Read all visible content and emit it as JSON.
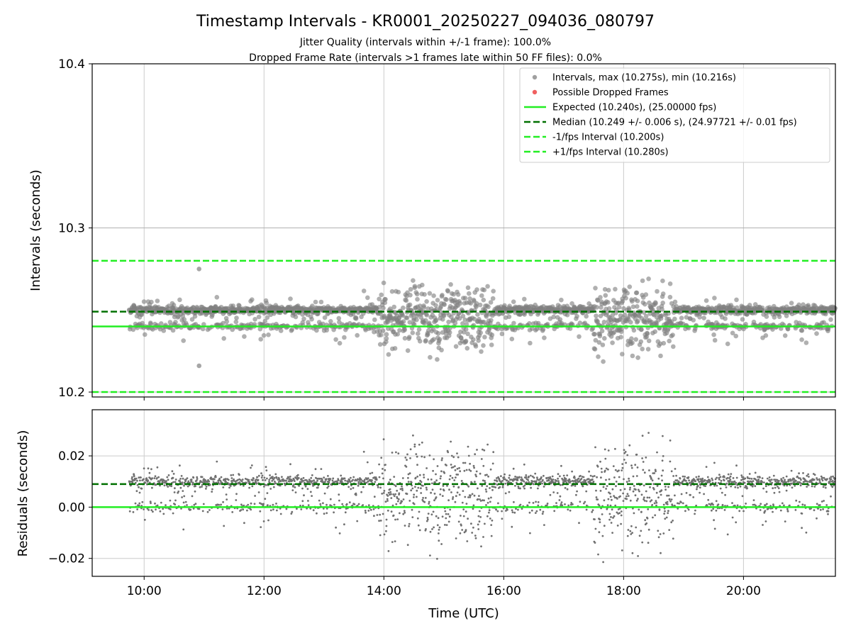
{
  "chart_data": [
    {
      "type": "scatter",
      "title": "Timestamp Intervals - KR0001_20250227_094036_080797",
      "subtitle_lines": [
        "Jitter Quality (intervals within +/-1 frame): 100.0%",
        "Dropped Frame Rate (intervals >1 frames late within 50 FF files): 0.0%"
      ],
      "ylabel": "Intervals (seconds)",
      "xlabel": "",
      "xlim": [
        "09:08",
        "21:32"
      ],
      "ylim": [
        10.197,
        10.4
      ],
      "yticks": [
        "10.2",
        "10.3",
        "10.4"
      ],
      "grid": true,
      "legend_placement": "upper-right",
      "x_start": "09:45",
      "x_end": "21:32",
      "series": [
        {
          "name": "Intervals, max (10.275s), min (10.216s)",
          "kind": "points",
          "color": "#808080",
          "max": 10.275,
          "min": 10.216,
          "median": 10.249,
          "lower_band": 10.24,
          "upper_band": 10.25
        },
        {
          "name": "Possible Dropped Frames",
          "kind": "points",
          "color": "#f06060",
          "count": 0
        },
        {
          "name": "Expected (10.240s), (25.00000 fps)",
          "kind": "hline",
          "y": 10.24,
          "color": "#22ee22",
          "style": "solid"
        },
        {
          "name": "Median (10.249 +/- 0.006 s), (24.97721 +/- 0.01 fps)",
          "kind": "hline",
          "y": 10.249,
          "color": "#007000",
          "style": "dashed"
        },
        {
          "name": "-1/fps Interval (10.200s)",
          "kind": "hline",
          "y": 10.2,
          "color": "#22ee22",
          "style": "dashed"
        },
        {
          "name": "+1/fps Interval (10.280s)",
          "kind": "hline",
          "y": 10.28,
          "color": "#22ee22",
          "style": "dashed"
        }
      ],
      "high_spread_periods": [
        {
          "start": "13:55",
          "end": "15:50"
        },
        {
          "start": "17:30",
          "end": "18:50"
        }
      ]
    },
    {
      "type": "scatter",
      "ylabel": "Residuals (seconds)",
      "xlabel": "Time (UTC)",
      "xlim": [
        "09:08",
        "21:32"
      ],
      "ylim": [
        -0.027,
        0.038
      ],
      "yticks": [
        "−0.02",
        "0.00",
        "0.02"
      ],
      "xticks": [
        "10:00",
        "12:00",
        "14:00",
        "16:00",
        "18:00",
        "20:00"
      ],
      "grid": true,
      "series": [
        {
          "kind": "points",
          "color": "#707070",
          "max": 0.035,
          "min": -0.024
        },
        {
          "kind": "hline",
          "y": 0.0,
          "color": "#22ee22",
          "style": "solid"
        },
        {
          "kind": "hline",
          "y": 0.009,
          "color": "#007000",
          "style": "dashed"
        }
      ]
    }
  ]
}
